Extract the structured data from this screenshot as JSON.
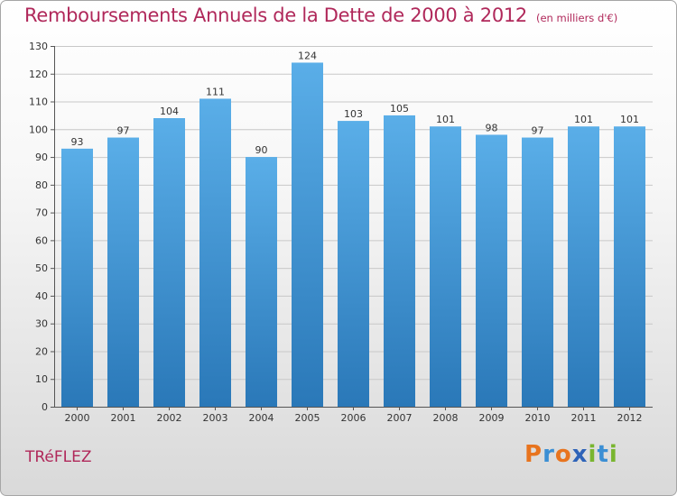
{
  "header": {
    "title": "Remboursements Annuels de la Dette de 2000 à 2012",
    "subtitle": "(en milliers d'€)"
  },
  "footer": {
    "commune": "TRéFLEZ",
    "brand": "Proxiti",
    "brand_letters": [
      {
        "char": "P",
        "color": "#e8741e"
      },
      {
        "char": "r",
        "color": "#3b8fd4"
      },
      {
        "char": "o",
        "color": "#e8741e"
      },
      {
        "char": "x",
        "color": "#2e63b8"
      },
      {
        "char": "i",
        "color": "#79b52f"
      },
      {
        "char": "t",
        "color": "#3b8fd4"
      },
      {
        "char": "i",
        "color": "#79b52f"
      }
    ]
  },
  "colors": {
    "title": "#b0285a",
    "bar_top": "#5aaee8",
    "bar_bottom": "#2a78b8",
    "grid": "#c8c8c8",
    "axis": "#555555",
    "text": "#333333"
  },
  "chart_data": {
    "type": "bar",
    "title": "Remboursements Annuels de la Dette de 2000 à 2012",
    "subtitle": "(en milliers d'€)",
    "categories": [
      "2000",
      "2001",
      "2002",
      "2003",
      "2004",
      "2005",
      "2006",
      "2007",
      "2008",
      "2009",
      "2010",
      "2011",
      "2012"
    ],
    "values": [
      93,
      97,
      104,
      111,
      90,
      124,
      103,
      105,
      101,
      98,
      97,
      101,
      101
    ],
    "ylim": [
      0,
      130
    ],
    "yticks": [
      0,
      10,
      20,
      30,
      40,
      50,
      60,
      70,
      80,
      90,
      100,
      110,
      120,
      130
    ],
    "grid": true,
    "data_labels": true,
    "legend": "none"
  }
}
